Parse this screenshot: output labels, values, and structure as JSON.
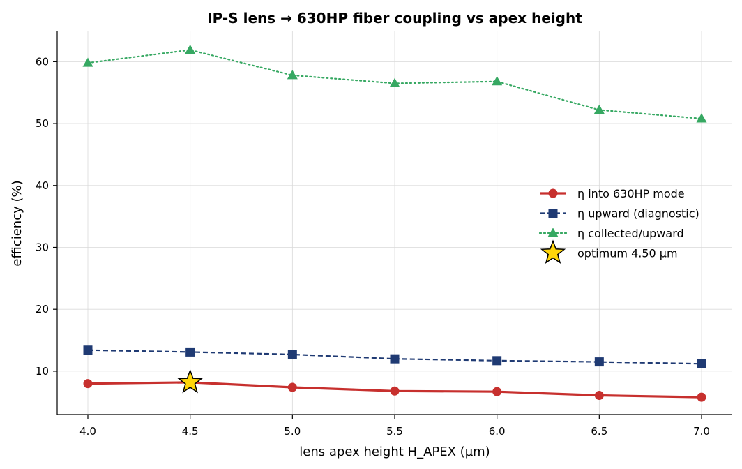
{
  "chart_data": {
    "type": "line",
    "title": "IP-S lens → 630HP fiber coupling vs apex height",
    "xlabel": "lens apex height  H_APEX (µm)",
    "ylabel": "efficiency (%)",
    "xlim": [
      3.85,
      7.15
    ],
    "ylim": [
      3,
      65
    ],
    "xticks": [
      "4.0",
      "4.5",
      "5.0",
      "5.5",
      "6.0",
      "6.5",
      "7.0"
    ],
    "yticks": [
      "10",
      "20",
      "30",
      "40",
      "50",
      "60"
    ],
    "grid": true,
    "legend_position": "center-right",
    "x": [
      4.0,
      4.5,
      5.0,
      5.5,
      6.0,
      6.5,
      7.0
    ],
    "series": [
      {
        "name": "η into 630HP mode",
        "values": [
          8.0,
          8.2,
          7.4,
          6.8,
          6.7,
          6.1,
          5.8
        ],
        "color": "#c7302e",
        "marker": "circle",
        "style": "solid"
      },
      {
        "name": "η upward (diagnostic)",
        "values": [
          13.4,
          13.1,
          12.7,
          12.0,
          11.7,
          11.5,
          11.2
        ],
        "color": "#1f3a73",
        "marker": "square",
        "style": "dashed"
      },
      {
        "name": "η collected/upward",
        "values": [
          59.8,
          61.9,
          57.8,
          56.5,
          56.8,
          52.2,
          50.8
        ],
        "color": "#36a862",
        "marker": "triangle",
        "style": "dotted"
      }
    ],
    "optimum": {
      "name": "optimum 4.50 µm",
      "x": 4.5,
      "y": 8.2,
      "color": "#ffd60a",
      "marker": "star"
    }
  }
}
